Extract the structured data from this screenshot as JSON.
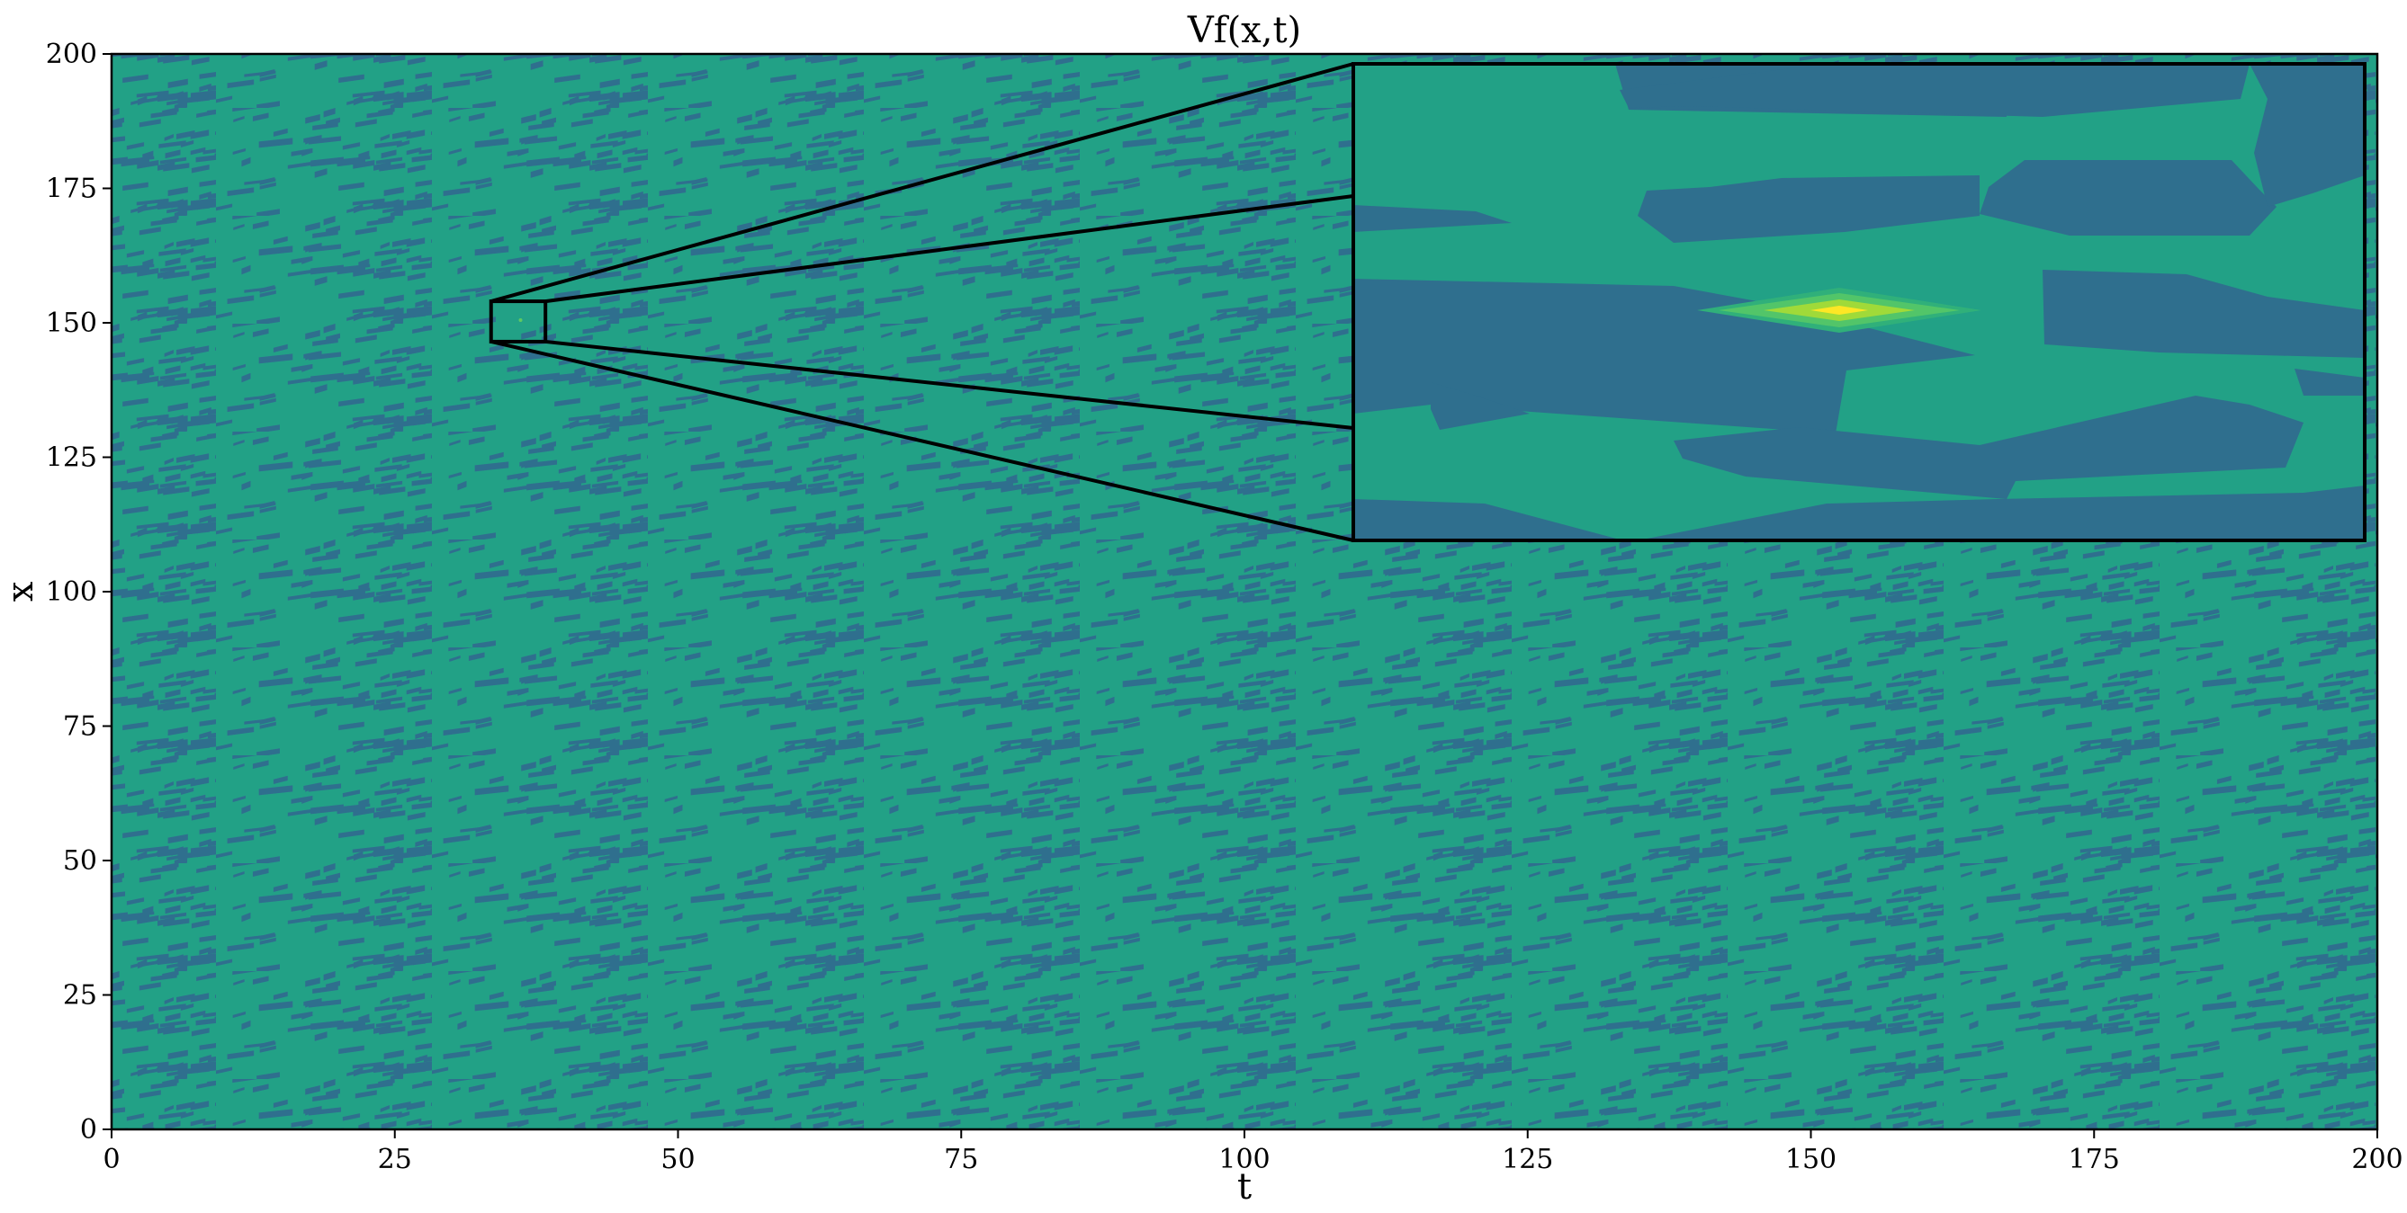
{
  "chart_data": {
    "type": "heatmap",
    "title": "Vf(x,t)",
    "xlabel": "t",
    "ylabel": "x",
    "xlim": [
      0,
      200
    ],
    "ylim": [
      0,
      200
    ],
    "x_ticks": [
      0,
      25,
      50,
      75,
      100,
      125,
      150,
      175,
      200
    ],
    "y_ticks": [
      0,
      25,
      50,
      75,
      100,
      125,
      150,
      175,
      200
    ],
    "grid": false,
    "colormap": "viridis",
    "colors": {
      "low": "#2f6f8e",
      "mid": "#21908d",
      "mid_high": "#22a186",
      "high": "#5ec962",
      "peak": "#fde725"
    },
    "inset": {
      "source_region": {
        "t": [
          33.5,
          38.3
        ],
        "x": [
          146.5,
          154
        ]
      },
      "peak": {
        "t": 36.1,
        "x": 150.5
      }
    }
  }
}
